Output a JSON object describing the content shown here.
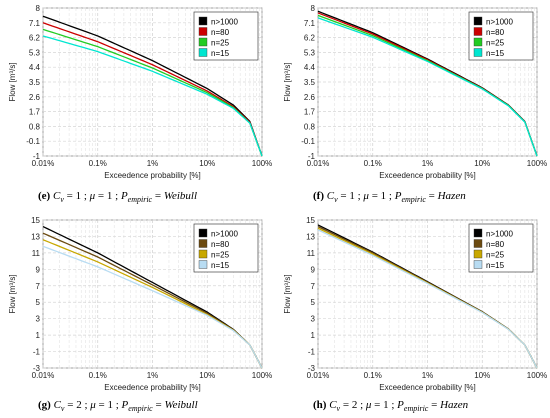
{
  "chart_data": [
    {
      "type": "line",
      "xlabel": "Exceedence probability [%]",
      "ylabel": "Flow [m³/s]",
      "xscale": "log",
      "xticks": [
        "0.01%",
        "0.1%",
        "1%",
        "10%",
        "100%"
      ],
      "yticks": [
        "-1",
        "-0.1",
        "0.8",
        "1.7",
        "2.6",
        "3.5",
        "4.4",
        "5.3",
        "6.2",
        "7.1",
        "8"
      ],
      "ylim": [
        -1,
        8
      ],
      "legend_position": "top-right",
      "caption": {
        "label": "(e)",
        "cv": "1",
        "mu": "1",
        "method": "Weibull"
      },
      "series": [
        {
          "name": "n>1000",
          "color": "#000000",
          "values": [
            [
              0.01,
              7.5
            ],
            [
              0.1,
              6.3
            ],
            [
              1,
              4.8
            ],
            [
              10,
              3.1
            ],
            [
              30,
              2.1
            ],
            [
              60,
              1.1
            ],
            [
              100,
              -1
            ]
          ]
        },
        {
          "name": "n=80",
          "color": "#cc0000",
          "values": [
            [
              0.01,
              7.1
            ],
            [
              0.1,
              5.95
            ],
            [
              1,
              4.55
            ],
            [
              10,
              2.95
            ],
            [
              30,
              2.0
            ],
            [
              60,
              1.05
            ],
            [
              100,
              -1
            ]
          ]
        },
        {
          "name": "n=25",
          "color": "#22cc22",
          "values": [
            [
              0.01,
              6.7
            ],
            [
              0.1,
              5.65
            ],
            [
              1,
              4.35
            ],
            [
              10,
              2.85
            ],
            [
              30,
              1.95
            ],
            [
              60,
              1.0
            ],
            [
              100,
              -1
            ]
          ]
        },
        {
          "name": "n=15",
          "color": "#00e6d0",
          "values": [
            [
              0.01,
              6.3
            ],
            [
              0.1,
              5.35
            ],
            [
              1,
              4.15
            ],
            [
              10,
              2.75
            ],
            [
              30,
              1.9
            ],
            [
              60,
              1.0
            ],
            [
              100,
              -1
            ]
          ]
        }
      ]
    },
    {
      "type": "line",
      "xlabel": "Exceedence probability [%]",
      "ylabel": "Flow [m³/s]",
      "xscale": "log",
      "xticks": [
        "0.01%",
        "0.1%",
        "1%",
        "10%",
        "100%"
      ],
      "yticks": [
        "-1",
        "-0.1",
        "0.8",
        "1.7",
        "2.6",
        "3.5",
        "4.4",
        "5.3",
        "6.2",
        "7.1",
        "8"
      ],
      "ylim": [
        -1,
        8
      ],
      "legend_position": "top-right",
      "caption": {
        "label": "(f)",
        "cv": "1",
        "mu": "1",
        "method": "Hazen"
      },
      "series": [
        {
          "name": "n>1000",
          "color": "#000000",
          "values": [
            [
              0.01,
              7.8
            ],
            [
              0.1,
              6.5
            ],
            [
              1,
              4.9
            ],
            [
              10,
              3.15
            ],
            [
              30,
              2.1
            ],
            [
              60,
              1.1
            ],
            [
              100,
              -1
            ]
          ]
        },
        {
          "name": "n=80",
          "color": "#cc0000",
          "values": [
            [
              0.01,
              7.7
            ],
            [
              0.1,
              6.42
            ],
            [
              1,
              4.85
            ],
            [
              10,
              3.12
            ],
            [
              30,
              2.08
            ],
            [
              60,
              1.08
            ],
            [
              100,
              -1
            ]
          ]
        },
        {
          "name": "n=25",
          "color": "#22cc22",
          "values": [
            [
              0.01,
              7.55
            ],
            [
              0.1,
              6.32
            ],
            [
              1,
              4.8
            ],
            [
              10,
              3.1
            ],
            [
              30,
              2.07
            ],
            [
              60,
              1.07
            ],
            [
              100,
              -1
            ]
          ]
        },
        {
          "name": "n=15",
          "color": "#00e6d0",
          "values": [
            [
              0.01,
              7.4
            ],
            [
              0.1,
              6.22
            ],
            [
              1,
              4.75
            ],
            [
              10,
              3.08
            ],
            [
              30,
              2.05
            ],
            [
              60,
              1.06
            ],
            [
              100,
              -1
            ]
          ]
        }
      ]
    },
    {
      "type": "line",
      "xlabel": "Exceedence probability [%]",
      "ylabel": "Flow [m³/s]",
      "xscale": "log",
      "xticks": [
        "0.01%",
        "0.1%",
        "1%",
        "10%",
        "100%"
      ],
      "yticks": [
        "-3",
        "-1",
        "1",
        "3",
        "5",
        "7",
        "9",
        "11",
        "13",
        "15"
      ],
      "ylim": [
        -3,
        15
      ],
      "legend_position": "top-right",
      "caption": {
        "label": "(g)",
        "cv": "2",
        "mu": "1",
        "method": "Weibull"
      },
      "series": [
        {
          "name": "n>1000",
          "color": "#000000",
          "values": [
            [
              0.01,
              14.2
            ],
            [
              0.1,
              11.0
            ],
            [
              1,
              7.4
            ],
            [
              10,
              3.8
            ],
            [
              30,
              1.7
            ],
            [
              60,
              -0.2
            ],
            [
              100,
              -3
            ]
          ]
        },
        {
          "name": "n=80",
          "color": "#6b4a10",
          "values": [
            [
              0.01,
              13.4
            ],
            [
              0.1,
              10.5
            ],
            [
              1,
              7.1
            ],
            [
              10,
              3.65
            ],
            [
              30,
              1.65
            ],
            [
              60,
              -0.2
            ],
            [
              100,
              -3
            ]
          ]
        },
        {
          "name": "n=25",
          "color": "#c8a800",
          "values": [
            [
              0.01,
              12.6
            ],
            [
              0.1,
              9.9
            ],
            [
              1,
              6.8
            ],
            [
              10,
              3.5
            ],
            [
              30,
              1.6
            ],
            [
              60,
              -0.2
            ],
            [
              100,
              -3
            ]
          ]
        },
        {
          "name": "n=15",
          "color": "#b8dcf2",
          "values": [
            [
              0.01,
              11.8
            ],
            [
              0.1,
              9.3
            ],
            [
              1,
              6.4
            ],
            [
              10,
              3.4
            ],
            [
              30,
              1.55
            ],
            [
              60,
              -0.2
            ],
            [
              100,
              -3
            ]
          ]
        }
      ]
    },
    {
      "type": "line",
      "xlabel": "Exceedence probability [%]",
      "ylabel": "Flow [m³/s]",
      "xscale": "log",
      "xticks": [
        "0.01%",
        "0.1%",
        "1%",
        "10%",
        "100%"
      ],
      "yticks": [
        "-3",
        "-1",
        "1",
        "3",
        "5",
        "7",
        "9",
        "11",
        "13",
        "15"
      ],
      "ylim": [
        -3,
        15
      ],
      "legend_position": "top-right",
      "caption": {
        "label": "(h)",
        "cv": "2",
        "mu": "1",
        "method": "Hazen"
      },
      "series": [
        {
          "name": "n>1000",
          "color": "#000000",
          "values": [
            [
              0.01,
              14.4
            ],
            [
              0.1,
              11.1
            ],
            [
              1,
              7.5
            ],
            [
              10,
              3.85
            ],
            [
              30,
              1.75
            ],
            [
              60,
              -0.2
            ],
            [
              100,
              -3
            ]
          ]
        },
        {
          "name": "n=80",
          "color": "#6b4a10",
          "values": [
            [
              0.01,
              14.2
            ],
            [
              0.1,
              11.0
            ],
            [
              1,
              7.42
            ],
            [
              10,
              3.82
            ],
            [
              30,
              1.73
            ],
            [
              60,
              -0.2
            ],
            [
              100,
              -3
            ]
          ]
        },
        {
          "name": "n=25",
          "color": "#c8a800",
          "values": [
            [
              0.01,
              14.0
            ],
            [
              0.1,
              10.85
            ],
            [
              1,
              7.35
            ],
            [
              10,
              3.78
            ],
            [
              30,
              1.72
            ],
            [
              60,
              -0.2
            ],
            [
              100,
              -3
            ]
          ]
        },
        {
          "name": "n=15",
          "color": "#b8dcf2",
          "values": [
            [
              0.01,
              13.8
            ],
            [
              0.1,
              10.7
            ],
            [
              1,
              7.28
            ],
            [
              10,
              3.75
            ],
            [
              30,
              1.7
            ],
            [
              60,
              -0.2
            ],
            [
              100,
              -3
            ]
          ]
        }
      ]
    }
  ]
}
